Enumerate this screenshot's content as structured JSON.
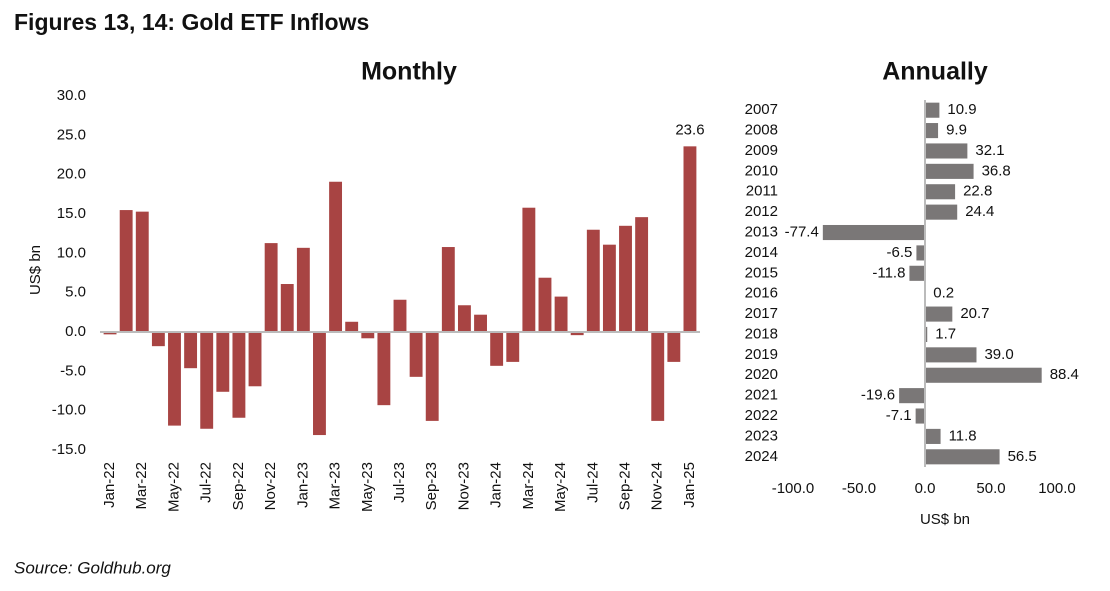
{
  "title": "Figures 13, 14: Gold ETF Inflows",
  "source": "Source: Goldhub.org",
  "chart_data": [
    {
      "type": "bar",
      "title": "Monthly",
      "ylabel": "US$ bn",
      "color": "#a84443",
      "categories": [
        "Jan-22",
        null,
        "Mar-22",
        null,
        "May-22",
        null,
        "Jul-22",
        null,
        "Sep-22",
        null,
        "Nov-22",
        null,
        "Jan-23",
        null,
        "Mar-23",
        null,
        "May-23",
        null,
        "Jul-23",
        null,
        "Sep-23",
        null,
        "Nov-23",
        null,
        "Jan-24",
        null,
        "Mar-24",
        null,
        "May-24",
        null,
        "Jul-24",
        null,
        "Sep-24",
        null,
        "Nov-24",
        null,
        "Jan-25"
      ],
      "values": [
        -0.3,
        15.5,
        15.3,
        -1.8,
        -11.9,
        -4.6,
        -12.3,
        -7.6,
        -10.9,
        -6.9,
        11.3,
        6.1,
        10.7,
        -13.1,
        19.1,
        1.3,
        -0.8,
        -9.3,
        4.1,
        -5.7,
        -11.3,
        10.8,
        3.4,
        2.2,
        -4.3,
        -3.8,
        15.8,
        6.9,
        4.5,
        -0.4,
        13.0,
        11.1,
        13.5,
        14.6,
        -11.3,
        -3.8,
        23.6
      ],
      "value_labels": [
        null,
        null,
        null,
        null,
        null,
        null,
        null,
        null,
        null,
        null,
        null,
        null,
        null,
        null,
        null,
        null,
        null,
        null,
        null,
        null,
        null,
        null,
        null,
        null,
        null,
        null,
        null,
        null,
        null,
        null,
        null,
        null,
        null,
        null,
        null,
        null,
        "23.6"
      ],
      "ylim": [
        -15,
        30
      ],
      "yticks": [
        {
          "value": 30,
          "label": "30.0"
        },
        {
          "value": 25,
          "label": "25.0"
        },
        {
          "value": 20,
          "label": "20.0"
        },
        {
          "value": 15,
          "label": "15.0"
        },
        {
          "value": 10,
          "label": "10.0"
        },
        {
          "value": 5,
          "label": "5.0"
        },
        {
          "value": 0,
          "label": "0.0"
        },
        {
          "value": -5,
          "label": "-5.0"
        },
        {
          "value": -10,
          "label": "-10.0"
        },
        {
          "value": -15,
          "label": "-15.0"
        }
      ]
    },
    {
      "type": "barh",
      "title": "Annually",
      "xlabel": "US$ bn",
      "color": "#7a7777",
      "categories": [
        "2007",
        "2008",
        "2009",
        "2010",
        "2011",
        "2012",
        "2013",
        "2014",
        "2015",
        "2016",
        "2017",
        "2018",
        "2019",
        "2020",
        "2021",
        "2022",
        "2023",
        "2024"
      ],
      "values": [
        10.9,
        9.9,
        32.1,
        36.8,
        22.8,
        24.4,
        -77.4,
        -6.5,
        -11.8,
        0.2,
        20.7,
        1.7,
        39.0,
        88.4,
        -19.6,
        -7.1,
        11.8,
        56.5
      ],
      "value_labels": [
        "10.9",
        "9.9",
        "32.1",
        "36.8",
        "22.8",
        "24.4",
        "-77.4",
        "-6.5",
        "-11.8",
        "0.2",
        "20.7",
        "1.7",
        "39.0",
        "88.4",
        "-19.6",
        "-7.1",
        "11.8",
        "56.5"
      ],
      "xlim": [
        -100,
        100
      ],
      "xticks": [
        {
          "value": -100,
          "label": "-100.0"
        },
        {
          "value": -50,
          "label": "-50.0"
        },
        {
          "value": 0,
          "label": "0.0"
        },
        {
          "value": 50,
          "label": "50.0"
        },
        {
          "value": 100,
          "label": "100.0"
        }
      ]
    }
  ]
}
